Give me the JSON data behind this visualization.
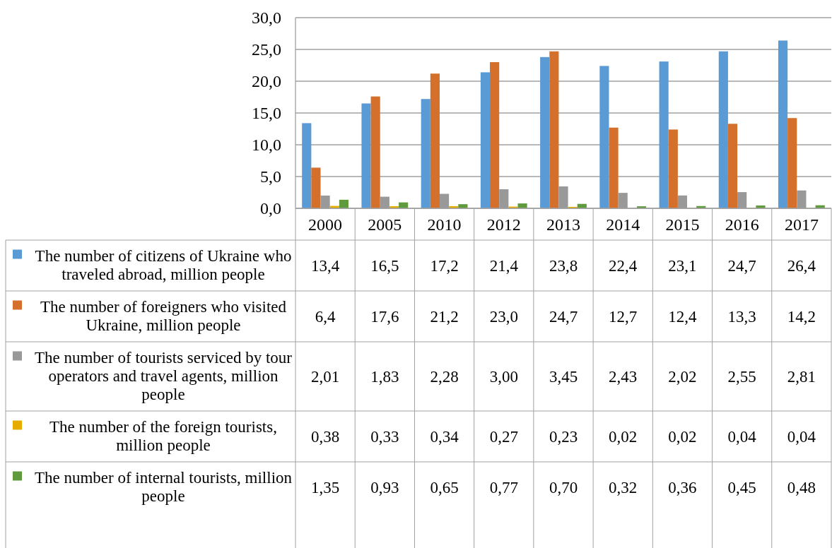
{
  "chart_data": {
    "type": "bar",
    "categories": [
      "2000",
      "2005",
      "2010",
      "2012",
      "2013",
      "2014",
      "2015",
      "2016",
      "2017"
    ],
    "series": [
      {
        "name": "The number of citizens of Ukraine who traveled abroad, million people",
        "color": "#5b9bd5",
        "values": [
          13.4,
          16.5,
          17.2,
          21.4,
          23.8,
          22.4,
          23.1,
          24.7,
          26.4
        ],
        "value_labels": [
          "13,4",
          "16,5",
          "17,2",
          "21,4",
          "23,8",
          "22,4",
          "23,1",
          "24,7",
          "26,4"
        ]
      },
      {
        "name": "The number of foreigners who visited Ukraine, million people",
        "color": "#d4702c",
        "values": [
          6.4,
          17.6,
          21.2,
          23.0,
          24.7,
          12.7,
          12.4,
          13.3,
          14.2
        ],
        "value_labels": [
          "6,4",
          "17,6",
          "21,2",
          "23,0",
          "24,7",
          "12,7",
          "12,4",
          "13,3",
          "14,2"
        ]
      },
      {
        "name": "The number of tourists serviced by tour operators and travel agents, million people",
        "color": "#999999",
        "values": [
          2.01,
          1.83,
          2.28,
          3.0,
          3.45,
          2.43,
          2.02,
          2.55,
          2.81
        ],
        "value_labels": [
          "2,01",
          "1,83",
          "2,28",
          "3,00",
          "3,45",
          "2,43",
          "2,02",
          "2,55",
          "2,81"
        ]
      },
      {
        "name": "The number of the foreign tourists, million people",
        "color": "#e6ac00",
        "values": [
          0.38,
          0.33,
          0.34,
          0.27,
          0.23,
          0.02,
          0.02,
          0.04,
          0.04
        ],
        "value_labels": [
          "0,38",
          "0,33",
          "0,34",
          "0,27",
          "0,23",
          "0,02",
          "0,02",
          "0,04",
          "0,04"
        ]
      },
      {
        "name": "The number of internal tourists, million people",
        "color": "#5f9a3c",
        "values": [
          1.35,
          0.93,
          0.65,
          0.77,
          0.7,
          0.32,
          0.36,
          0.45,
          0.48
        ],
        "value_labels": [
          "1,35",
          "0,93",
          "0,65",
          "0,77",
          "0,70",
          "0,32",
          "0,36",
          "0,45",
          "0,48"
        ]
      }
    ],
    "ylim": [
      0,
      30
    ],
    "yticks": [
      {
        "value": 0,
        "label": "0,0"
      },
      {
        "value": 5,
        "label": "5,0"
      },
      {
        "value": 10,
        "label": "10,0"
      },
      {
        "value": 15,
        "label": "15,0"
      },
      {
        "value": 20,
        "label": "20,0"
      },
      {
        "value": 25,
        "label": "25,0"
      },
      {
        "value": 30,
        "label": "30,0"
      }
    ],
    "grid": "y",
    "legend": "bottom"
  }
}
